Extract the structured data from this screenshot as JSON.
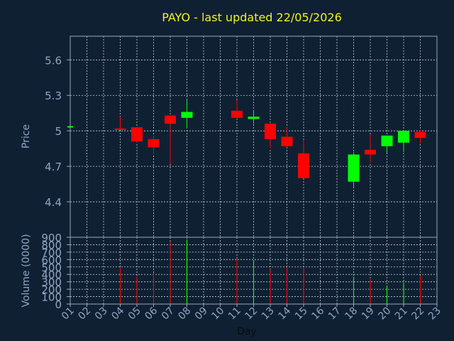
{
  "chart_data": [
    {
      "type": "candlestick",
      "title": "PAYO - last updated 22/05/2026",
      "ylabel": "Price",
      "ylim": [
        4.1,
        5.8
      ],
      "yticks": [
        "4.4",
        "4.7",
        "5",
        "5.3",
        "5.6"
      ],
      "ytick_values": [
        4.4,
        4.7,
        5.0,
        5.3,
        5.6
      ],
      "grid": true,
      "colors": {
        "up": "#00ff00",
        "down": "#ff0000",
        "background": "#0f2033",
        "grid": "#c8d0d8",
        "title": "#f2f21f",
        "labels": "#8fa6bf"
      },
      "candles": [
        {
          "day": "01",
          "open": 5.04,
          "high": 5.04,
          "low": 5.04,
          "close": 5.04
        },
        {
          "day": "04",
          "open": 5.02,
          "high": 5.12,
          "low": 5.01,
          "close": 5.01
        },
        {
          "day": "05",
          "open": 5.03,
          "high": 5.03,
          "low": 4.9,
          "close": 4.91
        },
        {
          "day": "06",
          "open": 4.93,
          "high": 4.96,
          "low": 4.8,
          "close": 4.86
        },
        {
          "day": "07",
          "open": 5.13,
          "high": 5.13,
          "low": 4.72,
          "close": 5.06
        },
        {
          "day": "08",
          "open": 5.11,
          "high": 5.26,
          "low": 5.02,
          "close": 5.16
        },
        {
          "day": "11",
          "open": 5.17,
          "high": 5.26,
          "low": 5.1,
          "close": 5.11
        },
        {
          "day": "12",
          "open": 5.1,
          "high": 5.17,
          "low": 5.06,
          "close": 5.12
        },
        {
          "day": "13",
          "open": 5.06,
          "high": 5.07,
          "low": 4.85,
          "close": 4.93
        },
        {
          "day": "14",
          "open": 4.95,
          "high": 5.03,
          "low": 4.86,
          "close": 4.87
        },
        {
          "day": "15",
          "open": 4.81,
          "high": 4.92,
          "low": 4.6,
          "close": 4.6
        },
        {
          "day": "18",
          "open": 4.57,
          "high": 4.82,
          "low": 4.52,
          "close": 4.8
        },
        {
          "day": "19",
          "open": 4.84,
          "high": 4.97,
          "low": 4.73,
          "close": 4.8
        },
        {
          "day": "20",
          "open": 4.87,
          "high": 4.96,
          "low": 4.81,
          "close": 4.96
        },
        {
          "day": "21",
          "open": 4.9,
          "high": 5.0,
          "low": 4.82,
          "close": 5.0
        },
        {
          "day": "22",
          "open": 4.99,
          "high": 5.01,
          "low": 4.89,
          "close": 4.94
        }
      ]
    },
    {
      "type": "bar",
      "ylabel": "Volume (0000)",
      "xlabel": "Day",
      "ylim": [
        0,
        900
      ],
      "yticks": [
        "0",
        "100",
        "200",
        "300",
        "400",
        "500",
        "600",
        "700",
        "800",
        "900"
      ],
      "ytick_values": [
        0,
        100,
        200,
        300,
        400,
        500,
        600,
        700,
        800,
        900
      ],
      "categories": [
        "01",
        "02",
        "03",
        "04",
        "05",
        "06",
        "07",
        "08",
        "09",
        "10",
        "11",
        "12",
        "13",
        "14",
        "15",
        "16",
        "17",
        "18",
        "19",
        "20",
        "21",
        "22",
        "23"
      ],
      "grid": true,
      "bars": [
        {
          "day": "04",
          "value": 490,
          "color": "#ff0000"
        },
        {
          "day": "05",
          "value": 370,
          "color": "#ff0000"
        },
        {
          "day": "06",
          "value": 420,
          "color": "#ff0000"
        },
        {
          "day": "07",
          "value": 840,
          "color": "#ff0000"
        },
        {
          "day": "08",
          "value": 870,
          "color": "#00ff00"
        },
        {
          "day": "11",
          "value": 610,
          "color": "#ff0000"
        },
        {
          "day": "12",
          "value": 580,
          "color": "#00ff00"
        },
        {
          "day": "13",
          "value": 470,
          "color": "#ff0000"
        },
        {
          "day": "14",
          "value": 500,
          "color": "#ff0000"
        },
        {
          "day": "15",
          "value": 490,
          "color": "#ff0000"
        },
        {
          "day": "18",
          "value": 370,
          "color": "#00ff00"
        },
        {
          "day": "19",
          "value": 330,
          "color": "#ff0000"
        },
        {
          "day": "20",
          "value": 250,
          "color": "#00ff00"
        },
        {
          "day": "21",
          "value": 280,
          "color": "#00ff00"
        },
        {
          "day": "22",
          "value": 380,
          "color": "#ff0000"
        }
      ]
    }
  ]
}
